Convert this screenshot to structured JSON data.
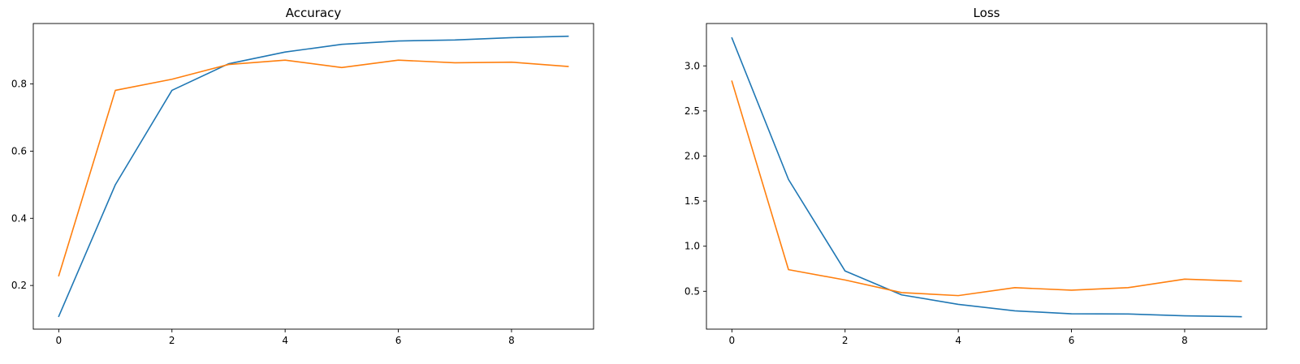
{
  "chart_data": [
    {
      "type": "line",
      "title": "Accuracy",
      "xlabel": "",
      "ylabel": "",
      "x": [
        0,
        1,
        2,
        3,
        4,
        5,
        6,
        7,
        8,
        9
      ],
      "xlim": [
        -0.45,
        9.45
      ],
      "ylim": [
        0.07,
        0.98
      ],
      "xticks": [
        0,
        2,
        4,
        6,
        8
      ],
      "yticks": [
        0.2,
        0.4,
        0.6,
        0.8
      ],
      "xtick_labels": [
        "0",
        "2",
        "4",
        "6",
        "8"
      ],
      "ytick_labels": [
        "0.2",
        "0.4",
        "0.6",
        "0.8"
      ],
      "grid": false,
      "legend": "none",
      "series": [
        {
          "color": "#1f77b4",
          "values": [
            0.108,
            0.5,
            0.781,
            0.86,
            0.895,
            0.918,
            0.928,
            0.931,
            0.938,
            0.942
          ]
        },
        {
          "color": "#ff7f0e",
          "values": [
            0.229,
            0.781,
            0.814,
            0.858,
            0.871,
            0.849,
            0.871,
            0.863,
            0.865,
            0.852
          ]
        }
      ]
    },
    {
      "type": "line",
      "title": "Loss",
      "xlabel": "",
      "ylabel": "",
      "x": [
        0,
        1,
        2,
        3,
        4,
        5,
        6,
        7,
        8,
        9
      ],
      "xlim": [
        -0.45,
        9.45
      ],
      "ylim": [
        0.08,
        3.47
      ],
      "xticks": [
        0,
        2,
        4,
        6,
        8
      ],
      "yticks": [
        0.5,
        1.0,
        1.5,
        2.0,
        2.5,
        3.0
      ],
      "xtick_labels": [
        "0",
        "2",
        "4",
        "6",
        "8"
      ],
      "ytick_labels": [
        "0.5",
        "1.0",
        "1.5",
        "2.0",
        "2.5",
        "3.0"
      ],
      "grid": false,
      "legend": "none",
      "series": [
        {
          "color": "#1f77b4",
          "values": [
            3.31,
            1.74,
            0.725,
            0.46,
            0.355,
            0.283,
            0.25,
            0.248,
            0.228,
            0.218
          ]
        },
        {
          "color": "#ff7f0e",
          "values": [
            2.83,
            0.74,
            0.625,
            0.485,
            0.452,
            0.54,
            0.512,
            0.54,
            0.635,
            0.612
          ]
        }
      ]
    }
  ]
}
